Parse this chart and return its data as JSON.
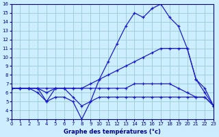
{
  "title": "Graphe des températures (°c)",
  "hours": [
    0,
    1,
    2,
    3,
    4,
    5,
    6,
    7,
    8,
    9,
    10,
    11,
    12,
    13,
    14,
    15,
    16,
    17,
    18,
    19,
    20,
    21,
    22,
    23
  ],
  "line_temp_max": [
    6.5,
    6.5,
    6.5,
    6.5,
    5.0,
    6.5,
    6.5,
    5.5,
    4.5,
    5.0,
    7.5,
    9.5,
    11.5,
    13.5,
    15.0,
    14.5,
    15.5,
    16.0,
    14.5,
    13.5,
    11.0,
    7.5,
    6.5,
    4.5
  ],
  "line_diag_up": [
    6.5,
    6.5,
    6.5,
    6.5,
    6.0,
    6.5,
    6.5,
    6.5,
    6.5,
    7.0,
    7.5,
    8.0,
    8.5,
    9.0,
    9.5,
    10.0,
    10.5,
    11.0,
    11.0,
    11.0,
    11.0,
    7.5,
    6.0,
    4.5
  ],
  "line_flat": [
    6.5,
    6.5,
    6.5,
    6.5,
    6.5,
    6.5,
    6.5,
    6.5,
    6.5,
    6.5,
    6.5,
    6.5,
    6.5,
    6.5,
    7.0,
    7.0,
    7.0,
    7.0,
    7.0,
    6.5,
    6.0,
    5.5,
    5.5,
    4.5
  ],
  "line_dip": [
    6.5,
    6.5,
    6.5,
    6.0,
    5.0,
    5.5,
    5.5,
    5.0,
    3.0,
    5.0,
    5.5,
    5.5,
    5.5,
    5.5,
    5.5,
    5.5,
    5.5,
    5.5,
    5.5,
    5.5,
    5.5,
    5.5,
    5.5,
    4.5
  ],
  "line_color": "#1a1acd",
  "bg_color": "#cceeff",
  "grid_color": "#99cccc",
  "axis_color": "#00008b",
  "ylim": [
    3,
    16
  ],
  "xlim": [
    0,
    23
  ],
  "yticks": [
    3,
    4,
    5,
    6,
    7,
    8,
    9,
    10,
    11,
    12,
    13,
    14,
    15,
    16
  ],
  "xticks": [
    0,
    1,
    2,
    3,
    4,
    5,
    6,
    7,
    8,
    9,
    10,
    11,
    12,
    13,
    14,
    15,
    16,
    17,
    18,
    19,
    20,
    21,
    22,
    23
  ]
}
